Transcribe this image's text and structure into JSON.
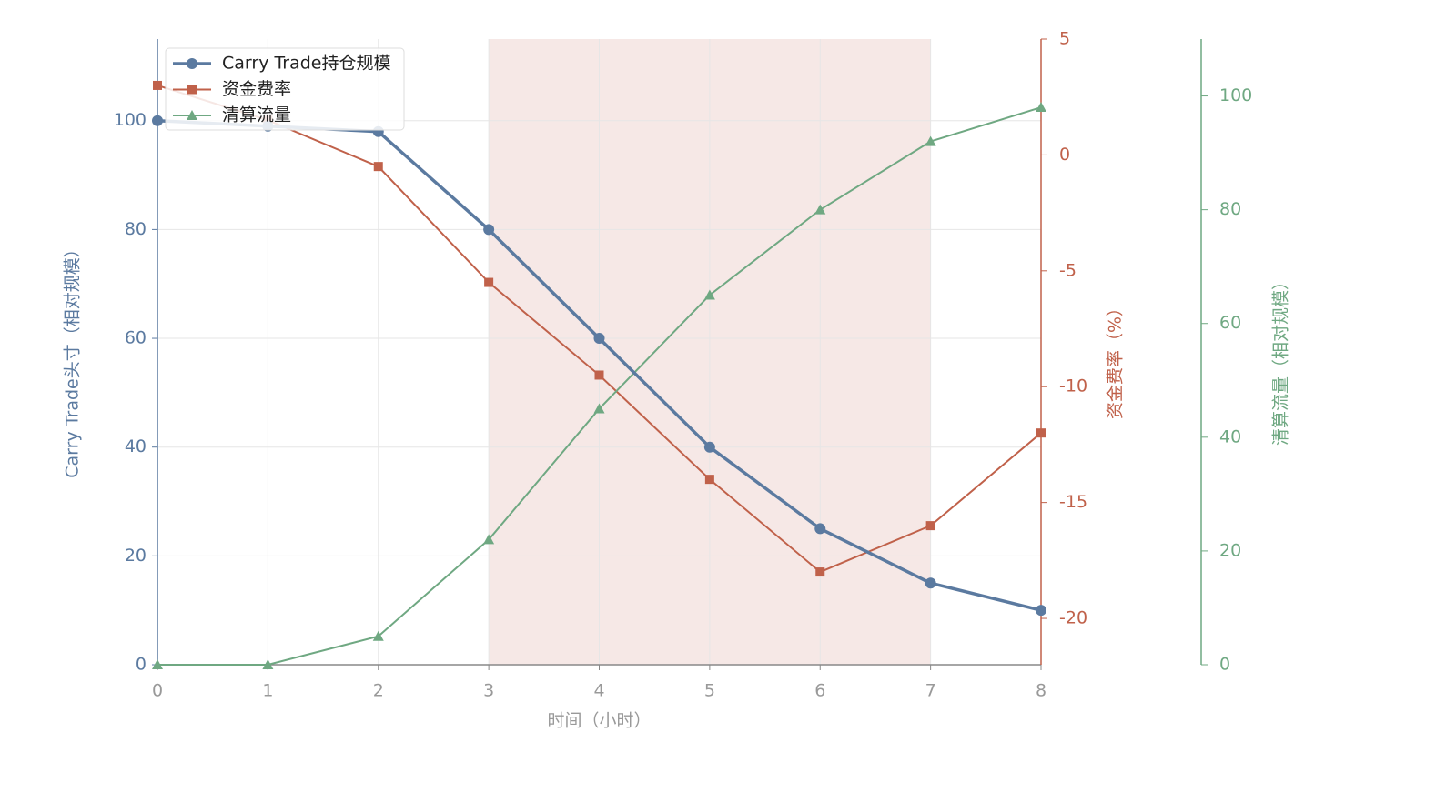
{
  "chart_data": {
    "type": "line",
    "x": [
      0,
      1,
      2,
      3,
      4,
      5,
      6,
      7,
      8
    ],
    "xlim": [
      0,
      8
    ],
    "xticks": [
      0,
      1,
      2,
      3,
      4,
      5,
      6,
      7,
      8
    ],
    "xlabel": "时间（小时）",
    "ylabel": "Carry Trade头寸（相对规模）",
    "y2label": "资金费率（%）",
    "y3label": "清算流量（相对规模）",
    "ylim": [
      0,
      115
    ],
    "yticks": [
      0,
      20,
      40,
      60,
      80,
      100
    ],
    "y2lim": [
      -22,
      5
    ],
    "y2ticks": [
      -20,
      -15,
      -10,
      -5,
      0,
      5
    ],
    "y3lim": [
      0,
      110
    ],
    "y3ticks": [
      0,
      20,
      40,
      60,
      80,
      100
    ],
    "grid": true,
    "legend": "upper left",
    "shade_xrange": [
      3,
      7
    ],
    "shade_color": "#f5e6e3",
    "series": [
      {
        "name": "Carry Trade持仓规模",
        "color": "#5b7aa0",
        "axis": "y",
        "marker": "circle",
        "values": [
          100,
          99,
          98,
          80,
          60,
          40,
          25,
          15,
          10
        ]
      },
      {
        "name": "资金费率",
        "color": "#c0614a",
        "axis": "y2",
        "marker": "square",
        "values": [
          3,
          1.5,
          -0.5,
          -5.5,
          -9.5,
          -14,
          -18,
          -16,
          -12
        ]
      },
      {
        "name": "清算流量",
        "color": "#6fa882",
        "axis": "y3",
        "marker": "triangle",
        "values": [
          0,
          0,
          5,
          22,
          45,
          65,
          80,
          92,
          98
        ]
      }
    ]
  }
}
